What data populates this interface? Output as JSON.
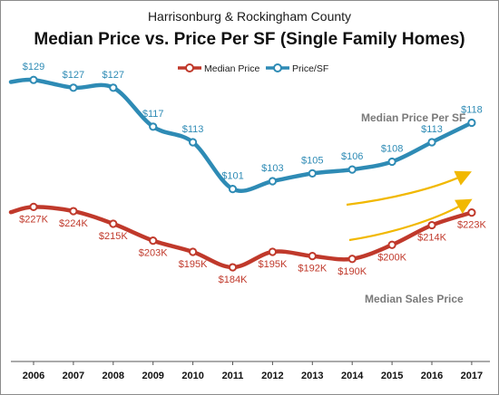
{
  "chart_data": {
    "type": "line",
    "subtitle": "Harrisonburg & Rockingham County",
    "title": "Median Price vs. Price Per SF (Single Family Homes)",
    "categories": [
      "2006",
      "2007",
      "2008",
      "2009",
      "2010",
      "2011",
      "2012",
      "2013",
      "2014",
      "2015",
      "2016",
      "2017"
    ],
    "series": [
      {
        "name": "Median Price",
        "color": "#c0392b",
        "values": [
          227,
          224,
          215,
          203,
          195,
          184,
          195,
          192,
          190,
          200,
          214,
          223
        ],
        "labels": [
          "$227K",
          "$224K",
          "$215K",
          "$203K",
          "$195K",
          "$184K",
          "$195K",
          "$192K",
          "$190K",
          "$200K",
          "$214K",
          "$223K"
        ]
      },
      {
        "name": "Price/SF",
        "color": "#2e8bb5",
        "values": [
          129,
          127,
          127,
          117,
          113,
          101,
          103,
          105,
          106,
          108,
          113,
          118
        ],
        "labels": [
          "$129",
          "$127",
          "$127",
          "$117",
          "$113",
          "$101",
          "$103",
          "$105",
          "$106",
          "$108",
          "$113",
          "$118"
        ]
      }
    ],
    "annotations": {
      "psf_label": "Median Price Per SF",
      "median_label": "Median Sales Price"
    },
    "arrow_color": "#f1b800",
    "grid": false,
    "legend": "top-center"
  }
}
